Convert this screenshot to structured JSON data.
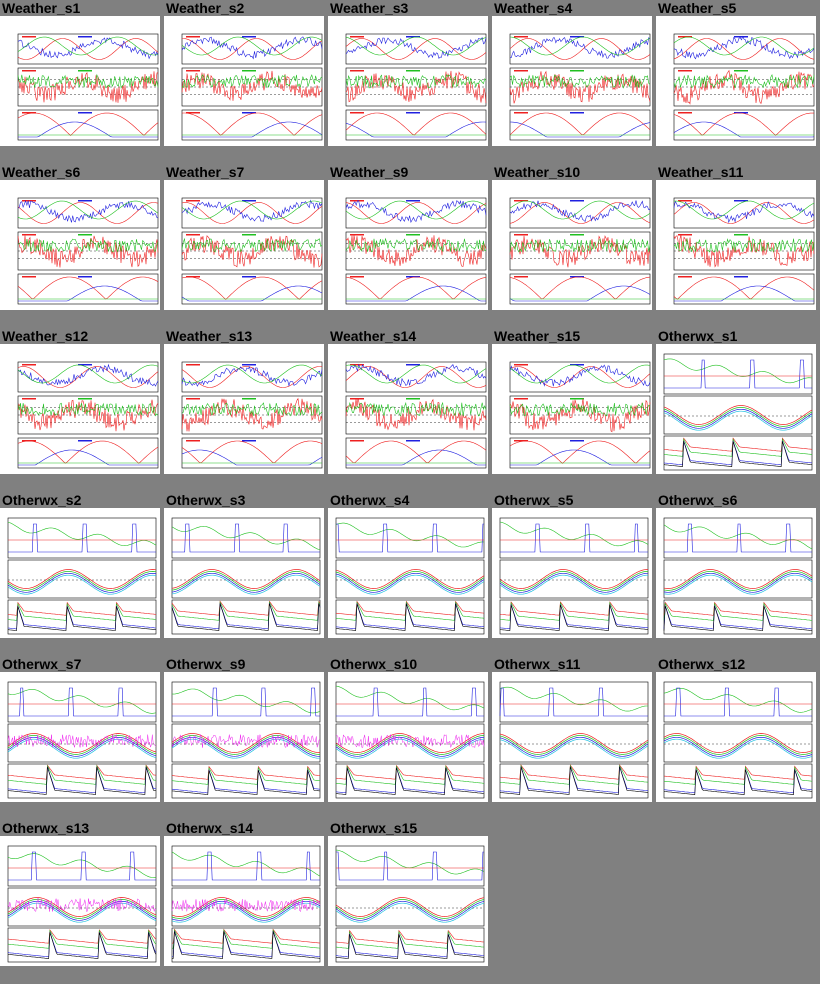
{
  "colors": {
    "background": "#808080",
    "red": "#ee2020",
    "green": "#20c020",
    "blue": "#2020e0",
    "cyan": "#20c0e0",
    "magenta": "#ee20ee",
    "black": "#000000"
  },
  "rows": [
    {
      "tiles": [
        {
          "title": "Weather_s1",
          "kind": "weather"
        },
        {
          "title": "Weather_s2",
          "kind": "weather"
        },
        {
          "title": "Weather_s3",
          "kind": "weather"
        },
        {
          "title": "Weather_s4",
          "kind": "weather"
        },
        {
          "title": "Weather_s5",
          "kind": "weather"
        }
      ]
    },
    {
      "tiles": [
        {
          "title": "Weather_s6",
          "kind": "weather"
        },
        {
          "title": "Weather_s7",
          "kind": "weather"
        },
        {
          "title": "Weather_s9",
          "kind": "weather"
        },
        {
          "title": "Weather_s10",
          "kind": "weather"
        },
        {
          "title": "Weather_s11",
          "kind": "weather"
        }
      ]
    },
    {
      "tiles": [
        {
          "title": "Weather_s12",
          "kind": "weather"
        },
        {
          "title": "Weather_s13",
          "kind": "weather"
        },
        {
          "title": "Weather_s14",
          "kind": "weather"
        },
        {
          "title": "Weather_s15",
          "kind": "weather"
        },
        {
          "title": "Otherwx_s1",
          "kind": "otherwx"
        }
      ]
    },
    {
      "tiles": [
        {
          "title": "Otherwx_s2",
          "kind": "otherwx"
        },
        {
          "title": "Otherwx_s3",
          "kind": "otherwx"
        },
        {
          "title": "Otherwx_s4",
          "kind": "otherwx"
        },
        {
          "title": "Otherwx_s5",
          "kind": "otherwx"
        },
        {
          "title": "Otherwx_s6",
          "kind": "otherwx"
        }
      ]
    },
    {
      "tiles": [
        {
          "title": "Otherwx_s7",
          "kind": "otherwx"
        },
        {
          "title": "Otherwx_s9",
          "kind": "otherwx"
        },
        {
          "title": "Otherwx_s10",
          "kind": "otherwx"
        },
        {
          "title": "Otherwx_s11",
          "kind": "otherwx"
        },
        {
          "title": "Otherwx_s12",
          "kind": "otherwx"
        }
      ]
    },
    {
      "tiles": [
        {
          "title": "Otherwx_s13",
          "kind": "otherwx"
        },
        {
          "title": "Otherwx_s14",
          "kind": "otherwx"
        },
        {
          "title": "Otherwx_s15",
          "kind": "otherwx"
        }
      ]
    }
  ]
}
